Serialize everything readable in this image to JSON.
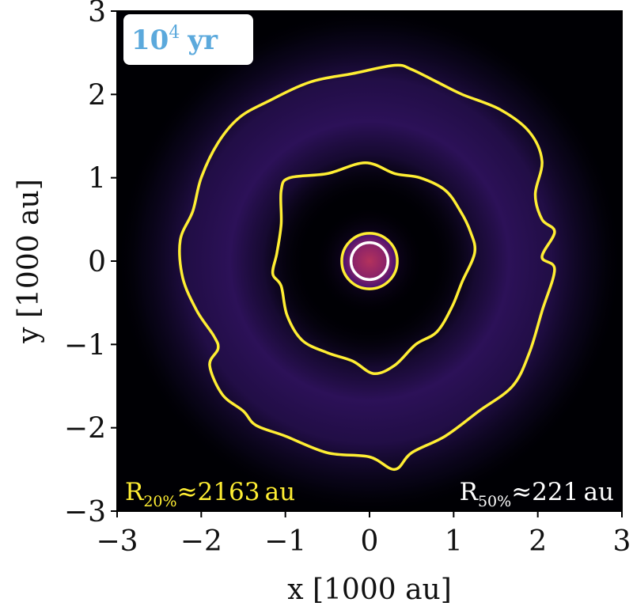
{
  "chart_data": {
    "type": "heatmap",
    "xlabel": "x [1000 au]",
    "ylabel": "y [1000 au]",
    "xlim": [
      -3,
      3
    ],
    "ylim": [
      -3,
      3
    ],
    "x_ticks": [
      -3,
      -2,
      -1,
      0,
      1,
      2,
      3
    ],
    "y_ticks": [
      -3,
      -2,
      -1,
      0,
      1,
      2,
      3
    ],
    "x_tick_labels": [
      "−3",
      "−2",
      "−1",
      "0",
      "1",
      "2",
      "3"
    ],
    "y_tick_labels": [
      "−3",
      "−2",
      "−1",
      "0",
      "1",
      "2",
      "3"
    ],
    "grid": false,
    "colormap": "inferno",
    "background_color": "#000004",
    "time_label": {
      "base": "10",
      "exponent": "4",
      "unit": "yr"
    },
    "time_label_color": "#5ba9dc",
    "contours": [
      {
        "name": "R20% outer",
        "color": "#ffee33",
        "points": [
          [
            0.3,
            2.35
          ],
          [
            -0.2,
            2.25
          ],
          [
            -0.7,
            2.15
          ],
          [
            -1.2,
            1.92
          ],
          [
            -1.55,
            1.72
          ],
          [
            -1.8,
            1.42
          ],
          [
            -2.0,
            1.0
          ],
          [
            -2.1,
            0.6
          ],
          [
            -2.25,
            0.25
          ],
          [
            -2.22,
            -0.2
          ],
          [
            -2.05,
            -0.6
          ],
          [
            -1.85,
            -0.9
          ],
          [
            -1.8,
            -1.05
          ],
          [
            -1.9,
            -1.25
          ],
          [
            -1.75,
            -1.6
          ],
          [
            -1.5,
            -1.8
          ],
          [
            -1.35,
            -1.97
          ],
          [
            -1.0,
            -2.1
          ],
          [
            -0.5,
            -2.3
          ],
          [
            0.0,
            -2.35
          ],
          [
            0.3,
            -2.5
          ],
          [
            0.5,
            -2.3
          ],
          [
            0.9,
            -2.1
          ],
          [
            1.3,
            -1.8
          ],
          [
            1.7,
            -1.5
          ],
          [
            1.9,
            -1.1
          ],
          [
            2.05,
            -0.6
          ],
          [
            2.2,
            -0.1
          ],
          [
            2.05,
            0.05
          ],
          [
            2.2,
            0.35
          ],
          [
            2.05,
            0.5
          ],
          [
            1.97,
            0.8
          ],
          [
            2.05,
            1.2
          ],
          [
            1.9,
            1.55
          ],
          [
            1.55,
            1.82
          ],
          [
            1.1,
            2.0
          ],
          [
            0.8,
            2.15
          ],
          [
            0.5,
            2.3
          ]
        ]
      },
      {
        "name": "R20% inner",
        "color": "#ffee33",
        "points": [
          [
            -0.05,
            1.18
          ],
          [
            -0.5,
            1.05
          ],
          [
            -0.95,
            1.0
          ],
          [
            -1.05,
            0.85
          ],
          [
            -1.05,
            0.45
          ],
          [
            -1.1,
            0.1
          ],
          [
            -1.15,
            -0.15
          ],
          [
            -1.05,
            -0.3
          ],
          [
            -0.98,
            -0.65
          ],
          [
            -0.8,
            -0.95
          ],
          [
            -0.5,
            -1.1
          ],
          [
            -0.2,
            -1.2
          ],
          [
            0.05,
            -1.35
          ],
          [
            0.3,
            -1.25
          ],
          [
            0.55,
            -1.0
          ],
          [
            0.8,
            -0.85
          ],
          [
            0.98,
            -0.55
          ],
          [
            1.1,
            -0.25
          ],
          [
            1.25,
            0.1
          ],
          [
            1.2,
            0.35
          ],
          [
            1.08,
            0.6
          ],
          [
            0.9,
            0.85
          ],
          [
            0.6,
            1.0
          ],
          [
            0.3,
            1.05
          ]
        ]
      },
      {
        "name": "R20% core",
        "color": "#ffee33",
        "center": [
          0.0,
          0.0
        ],
        "radius": 0.33
      },
      {
        "name": "R50%",
        "color": "#ffffff",
        "center": [
          0.0,
          0.0
        ],
        "radius": 0.22
      }
    ],
    "annotations": [
      {
        "base": "R",
        "sub": "20%",
        "rest": "≈2163 au",
        "color": "#ffee33",
        "position": "bottom-left"
      },
      {
        "base": "R",
        "sub": "50%",
        "rest": "≈221 au",
        "color": "#ffffff",
        "position": "bottom-right"
      }
    ]
  }
}
